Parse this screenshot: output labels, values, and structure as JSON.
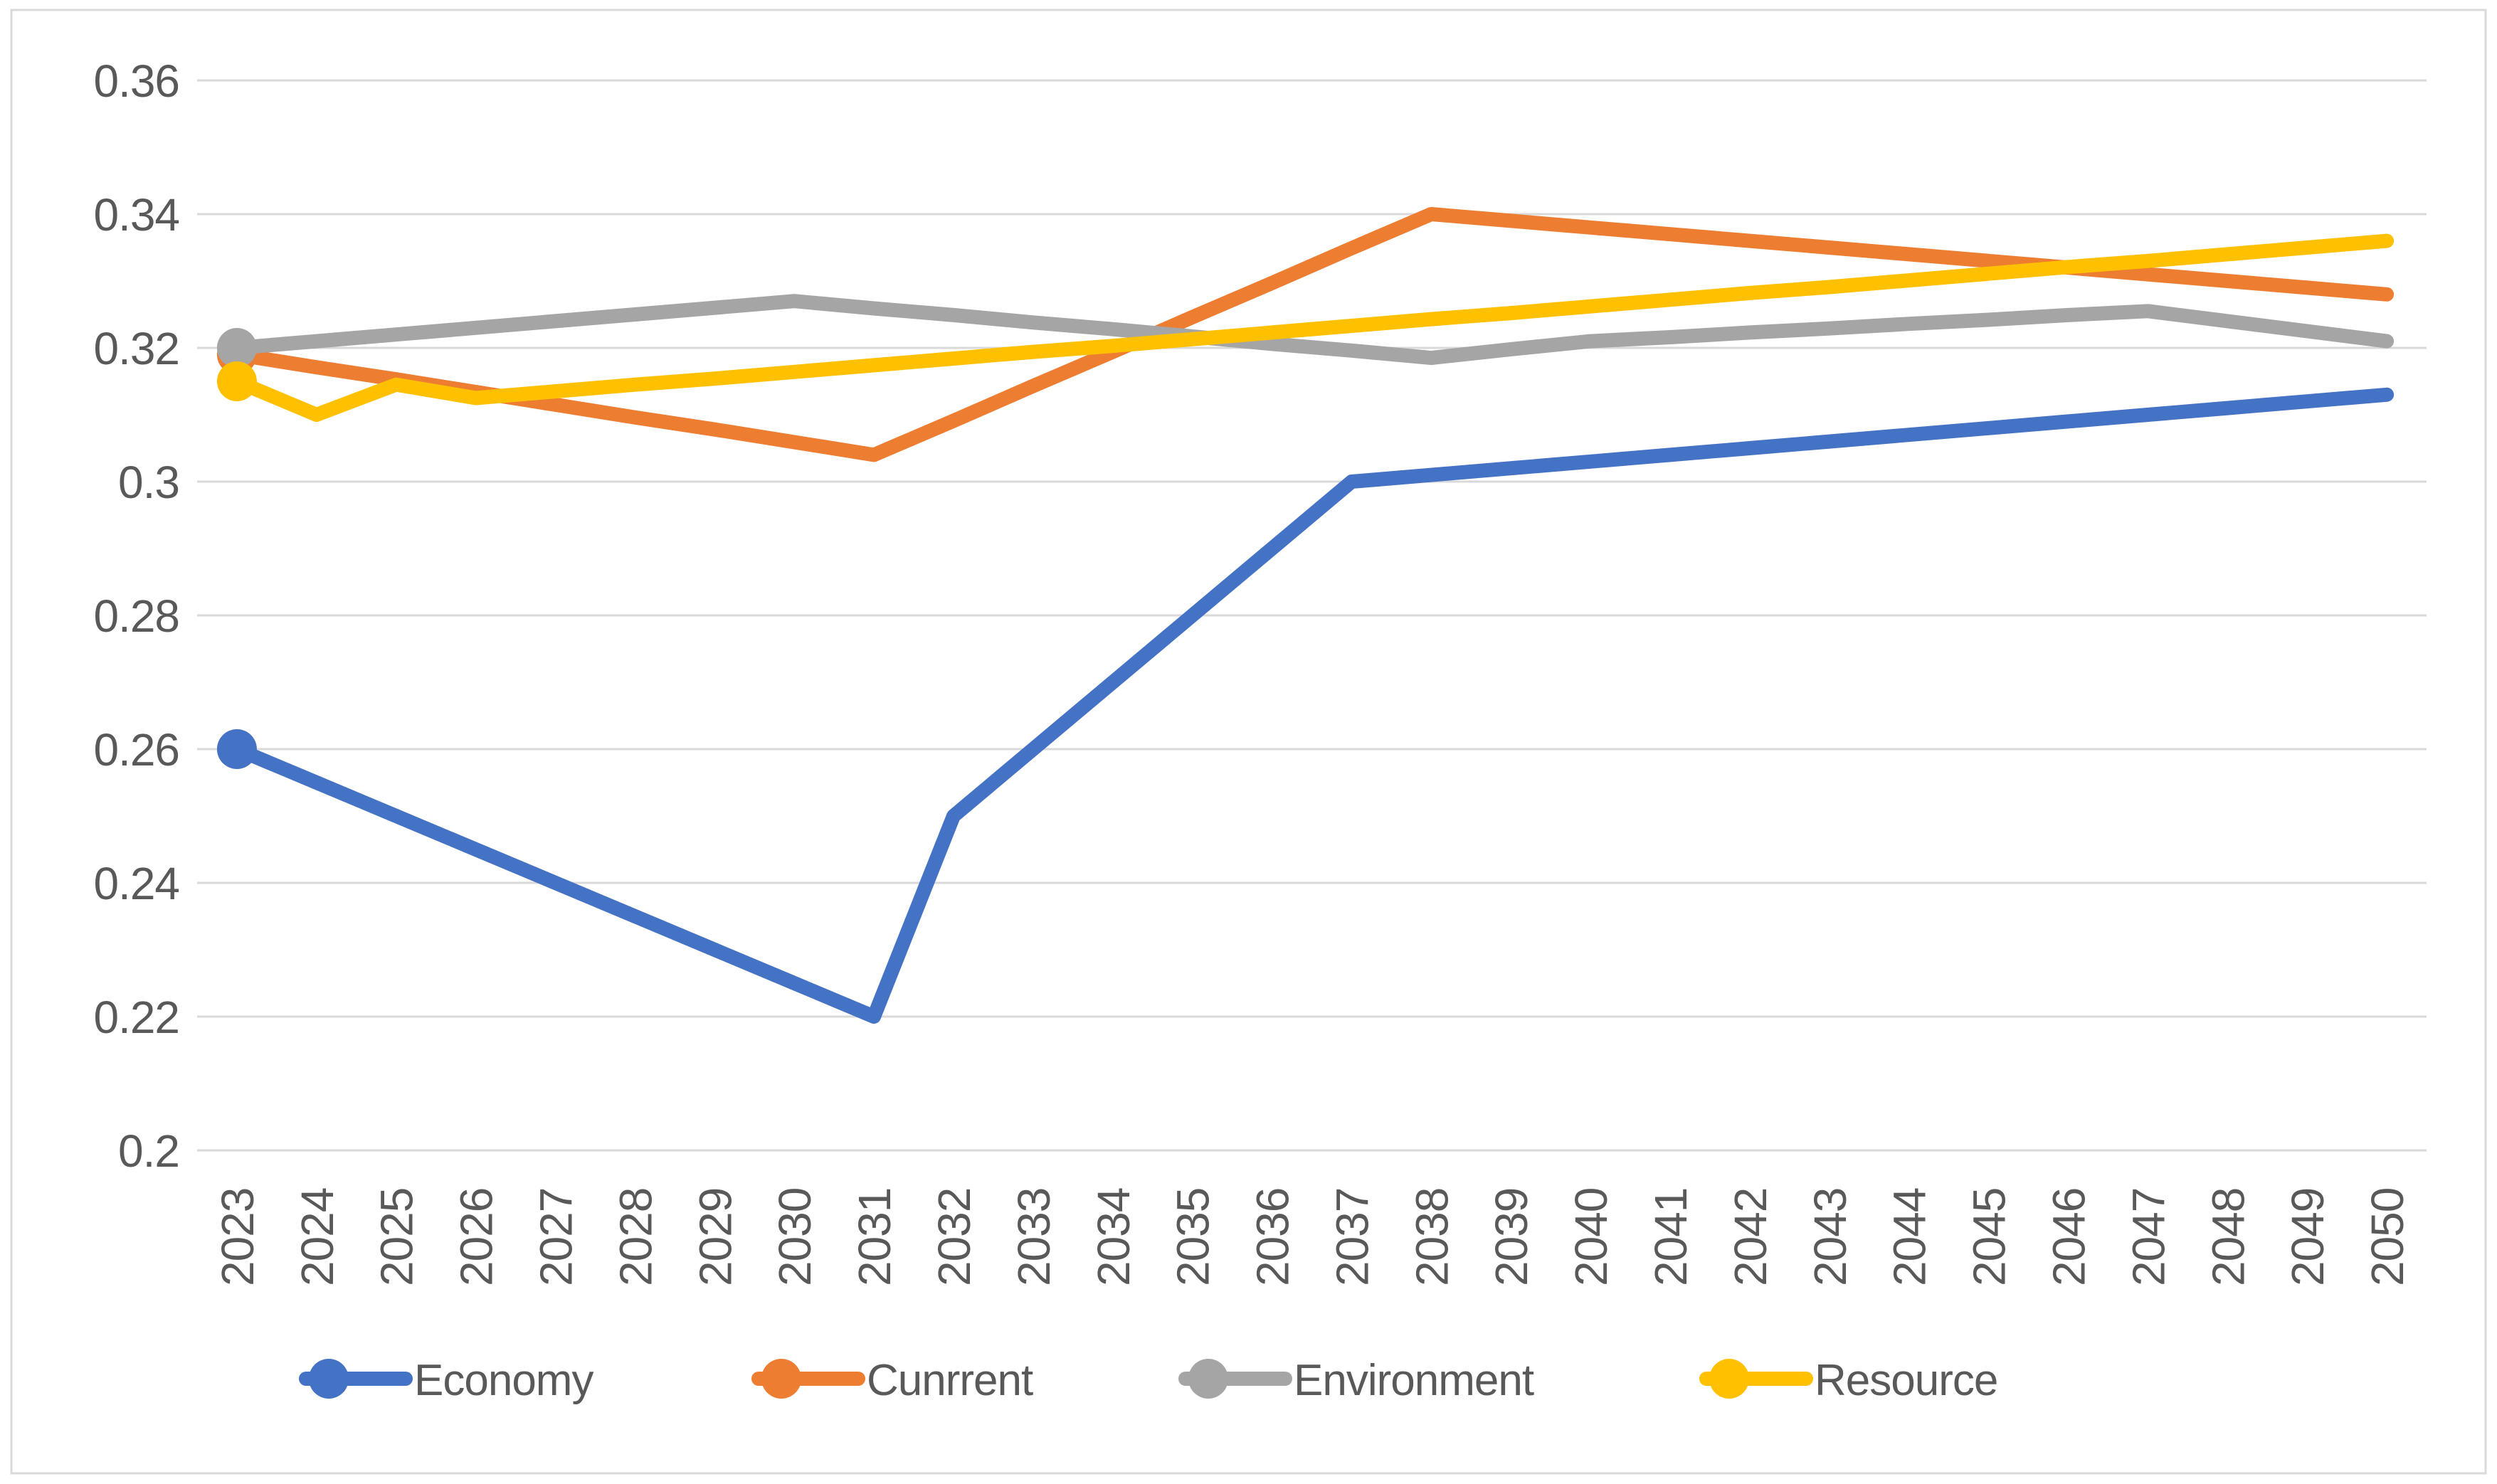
{
  "chart_data": {
    "type": "line",
    "title": "",
    "xlabel": "",
    "ylabel": "",
    "x": [
      "2023",
      "2024",
      "2025",
      "2026",
      "2027",
      "2028",
      "2029",
      "2030",
      "2031",
      "2032",
      "2033",
      "2034",
      "2035",
      "2036",
      "2037",
      "2038",
      "2039",
      "2040",
      "2041",
      "2042",
      "2043",
      "2044",
      "2045",
      "2046",
      "2047",
      "2048",
      "2049",
      "2050"
    ],
    "series": [
      {
        "name": "Economy",
        "color": "#4472C4",
        "values": [
          0.26,
          0.255,
          0.25,
          0.245,
          0.24,
          0.235,
          0.23,
          0.225,
          0.22,
          0.25,
          0.26,
          0.27,
          0.28,
          0.29,
          0.3,
          0.301,
          0.302,
          0.303,
          0.304,
          0.305,
          0.306,
          0.307,
          0.308,
          0.309,
          0.31,
          0.311,
          0.312,
          0.313
        ]
      },
      {
        "name": "Cunrrent",
        "color": "#ED7D31",
        "values": [
          0.319,
          0.3171,
          0.3153,
          0.3134,
          0.3115,
          0.3096,
          0.3078,
          0.3059,
          0.304,
          0.3091,
          0.3143,
          0.3194,
          0.3246,
          0.3297,
          0.3349,
          0.34,
          0.339,
          0.338,
          0.337,
          0.336,
          0.335,
          0.334,
          0.333,
          0.332,
          0.331,
          0.33,
          0.329,
          0.328
        ]
      },
      {
        "name": "Environment",
        "color": "#A5A5A5",
        "values": [
          0.32,
          0.321,
          0.322,
          0.323,
          0.324,
          0.325,
          0.326,
          0.327,
          0.3259,
          0.3249,
          0.3238,
          0.3228,
          0.3217,
          0.3206,
          0.3196,
          0.3185,
          0.3198,
          0.321,
          0.3216,
          0.3223,
          0.3229,
          0.3236,
          0.3242,
          0.3249,
          0.3255,
          0.324,
          0.3225,
          0.321
        ]
      },
      {
        "name": "Resource",
        "color": "#FFC000",
        "values": [
          0.315,
          0.31,
          0.3145,
          0.3125,
          0.3135,
          0.3145,
          0.3154,
          0.3164,
          0.3174,
          0.3184,
          0.3194,
          0.3203,
          0.3213,
          0.3223,
          0.3233,
          0.3243,
          0.3252,
          0.3262,
          0.3272,
          0.3282,
          0.3291,
          0.3301,
          0.3311,
          0.3321,
          0.333,
          0.334,
          0.335,
          0.336
        ]
      }
    ],
    "ylim": [
      0.2,
      0.36
    ],
    "ytick_step": 0.02,
    "ytick_labels": [
      "0.2",
      "0.22",
      "0.24",
      "0.26",
      "0.28",
      "0.3",
      "0.32",
      "0.34",
      "0.36"
    ],
    "grid": true,
    "legend_position": "bottom",
    "first_point_markers": true
  },
  "styles": {
    "background": "#FFFFFF",
    "border_color": "#D9D9D9",
    "grid_color": "#D9D9D9",
    "text_color": "#595959"
  }
}
